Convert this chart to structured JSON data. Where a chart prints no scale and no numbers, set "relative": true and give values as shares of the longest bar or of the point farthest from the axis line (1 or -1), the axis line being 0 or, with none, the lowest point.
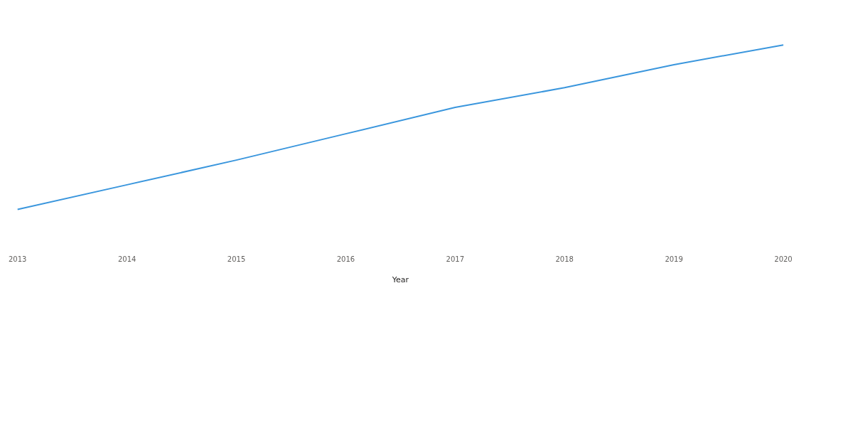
{
  "chart_data": {
    "type": "line",
    "xlabel": "Year",
    "relative": true,
    "legend": false,
    "marker": "none",
    "line_style": "solid",
    "categories": [
      "2013",
      "2014",
      "2015",
      "2016",
      "2017",
      "2018",
      "2019",
      "2020"
    ],
    "series": [
      {
        "color": "#3a96dd",
        "values": [
          0,
          0.15,
          0.3,
          0.46,
          0.62,
          0.74,
          0.88,
          1
        ]
      }
    ]
  }
}
